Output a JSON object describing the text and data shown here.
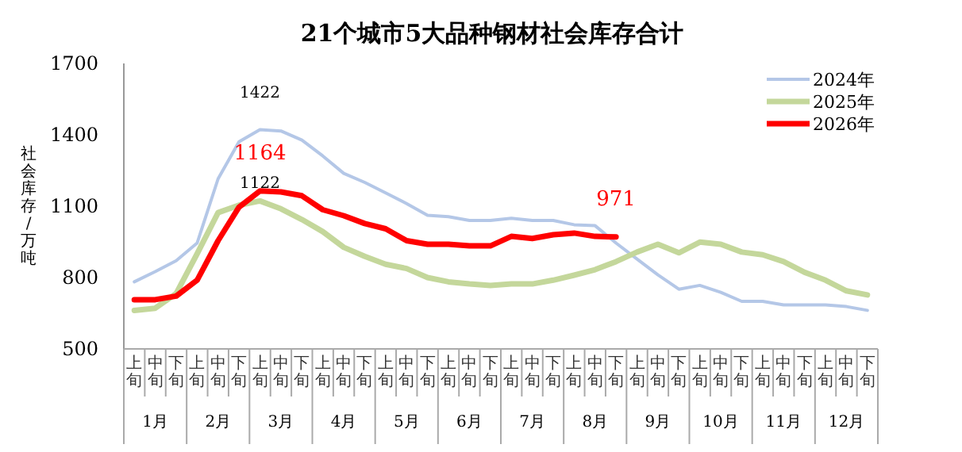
{
  "chart_data": {
    "type": "line",
    "title": "21个城市5大品种钢材社会库存合计",
    "ylabel": "社会库存/万吨",
    "categories": [
      "上旬",
      "中旬",
      "下旬",
      "上旬",
      "中旬",
      "下旬",
      "上旬",
      "中旬",
      "下旬",
      "上旬",
      "中旬",
      "下旬",
      "上旬",
      "中旬",
      "下旬",
      "上旬",
      "中旬",
      "下旬",
      "上旬",
      "中旬",
      "下旬",
      "上旬",
      "中旬",
      "下旬",
      "上旬",
      "中旬",
      "下旬",
      "上旬",
      "中旬",
      "下旬",
      "上旬",
      "中旬",
      "下旬",
      "上旬",
      "中旬",
      "下旬"
    ],
    "annotations": [
      "1月",
      "2月",
      "3月",
      "4月",
      "5月",
      "6月",
      "7月",
      "8月",
      "9月",
      "10月",
      "11月",
      "12月"
    ],
    "ylim": [
      500,
      1700
    ],
    "yticks": [
      500,
      800,
      1100,
      1400,
      1700
    ],
    "legend": "top right",
    "series": [
      {
        "name": "2024年",
        "color": "#b4c7e7",
        "values": [
          782,
          825,
          871,
          945,
          1215,
          1371,
          1422,
          1416,
          1378,
          1311,
          1238,
          1200,
          1156,
          1111,
          1062,
          1056,
          1040,
          1040,
          1049,
          1040,
          1040,
          1022,
          1018,
          945,
          878,
          811,
          751,
          767,
          738,
          700,
          700,
          685,
          685,
          685,
          678,
          662
        ],
        "value_labels": [
          null,
          null,
          null,
          null,
          null,
          null,
          "1422",
          null,
          null,
          null,
          null,
          null,
          null,
          null,
          null,
          null,
          null,
          null,
          null,
          null,
          null,
          null,
          null,
          null,
          null,
          null,
          null,
          null,
          null,
          null,
          null,
          null,
          null,
          null,
          null,
          null
        ]
      },
      {
        "name": "2025年",
        "color": "#c4d79b",
        "values": [
          662,
          671,
          733,
          900,
          1073,
          1104,
          1122,
          1089,
          1044,
          993,
          927,
          889,
          856,
          838,
          800,
          782,
          773,
          767,
          773,
          773,
          789,
          810,
          833,
          867,
          907,
          940,
          904,
          949,
          940,
          907,
          896,
          867,
          822,
          789,
          744,
          727
        ],
        "value_labels": [
          null,
          null,
          null,
          null,
          null,
          null,
          "1122",
          null,
          null,
          null,
          null,
          null,
          null,
          null,
          null,
          null,
          null,
          null,
          null,
          null,
          null,
          null,
          null,
          null,
          null,
          null,
          null,
          null,
          null,
          null,
          null,
          null,
          null,
          null,
          null,
          null
        ]
      },
      {
        "name": "2026年",
        "color": "#ff0000",
        "values": [
          707,
          707,
          722,
          789,
          955,
          1096,
          1164,
          1160,
          1144,
          1085,
          1060,
          1027,
          1005,
          955,
          940,
          940,
          933,
          933,
          973,
          964,
          980,
          987,
          973,
          971,
          null,
          null,
          null,
          null,
          null,
          null,
          null,
          null,
          null,
          null,
          null,
          null
        ],
        "value_labels": [
          null,
          null,
          null,
          null,
          null,
          null,
          "1164",
          null,
          null,
          null,
          null,
          null,
          null,
          null,
          null,
          null,
          null,
          null,
          null,
          null,
          null,
          null,
          null,
          "971",
          null,
          null,
          null,
          null,
          null,
          null,
          null,
          null,
          null,
          null,
          null,
          null
        ]
      }
    ]
  }
}
